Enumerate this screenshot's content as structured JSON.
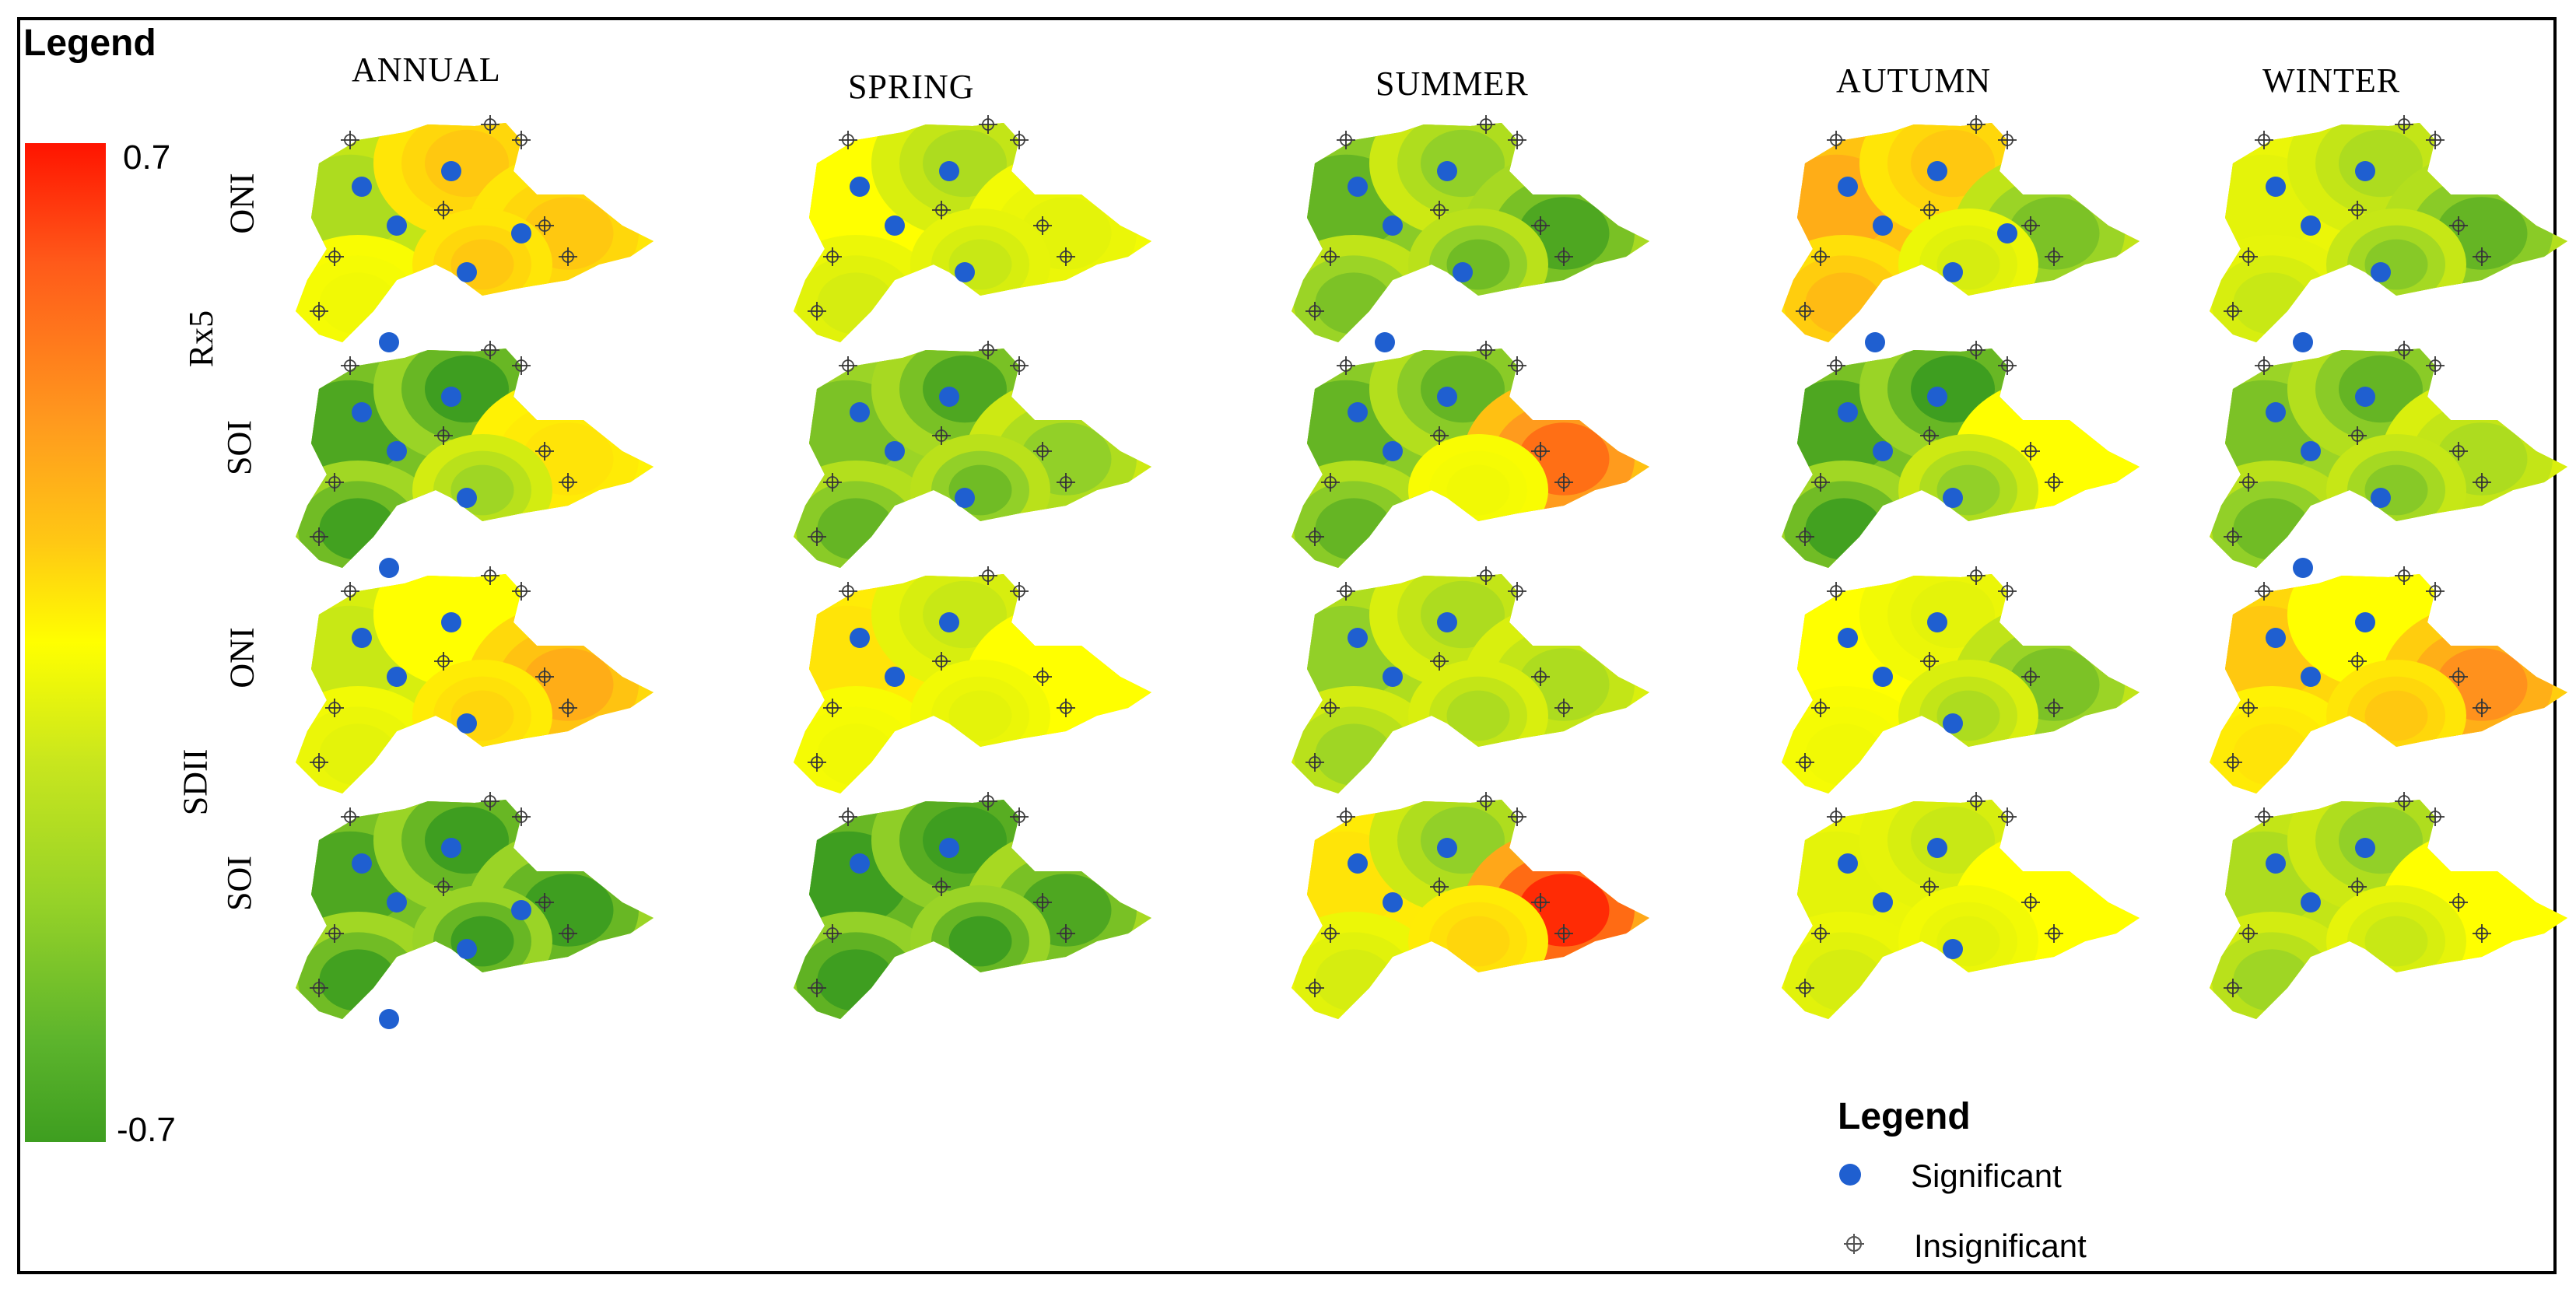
{
  "legend_left": {
    "title": "Legend",
    "max_label": "0.7",
    "min_label": "-0.7"
  },
  "variables": [
    "Rx5",
    "SDII"
  ],
  "row_indices": [
    "ONI",
    "SOI",
    "ONI",
    "SOI"
  ],
  "seasons": [
    "ANNUAL",
    "SPRING",
    "SUMMER",
    "AUTUMN",
    "WINTER"
  ],
  "legend_bottom": {
    "title": "Legend",
    "significant": "Significant",
    "insignificant": "Insignificant"
  },
  "colors": {
    "high": "#ff1400",
    "mid": "#ffff00",
    "low": "#3e9e20",
    "significant": "#1f5fd0"
  },
  "maps": [
    {
      "row": 0,
      "col": 0,
      "hot": [
        0.35,
        0.6,
        0.6
      ],
      "sig": 6
    },
    {
      "row": 0,
      "col": 1,
      "hot": [
        0.5,
        0.35,
        0.45
      ],
      "sig": 4
    },
    {
      "row": 0,
      "col": 2,
      "hot": [
        0.2,
        0.3,
        0.15
      ],
      "sig": 5
    },
    {
      "row": 0,
      "col": 3,
      "hot": [
        0.65,
        0.6,
        0.25
      ],
      "sig": 6
    },
    {
      "row": 0,
      "col": 4,
      "hot": [
        0.45,
        0.35,
        0.2
      ],
      "sig": 5
    },
    {
      "row": 1,
      "col": 0,
      "hot": [
        0.15,
        0.1,
        0.55
      ],
      "sig": 5
    },
    {
      "row": 1,
      "col": 1,
      "hot": [
        0.25,
        0.15,
        0.3
      ],
      "sig": 4
    },
    {
      "row": 1,
      "col": 2,
      "hot": [
        0.2,
        0.2,
        0.75
      ],
      "sig": 3
    },
    {
      "row": 1,
      "col": 3,
      "hot": [
        0.15,
        0.1,
        0.5
      ],
      "sig": 4
    },
    {
      "row": 1,
      "col": 4,
      "hot": [
        0.25,
        0.2,
        0.35
      ],
      "sig": 5
    },
    {
      "row": 2,
      "col": 0,
      "hot": [
        0.4,
        0.5,
        0.65
      ],
      "sig": 4
    },
    {
      "row": 2,
      "col": 1,
      "hot": [
        0.55,
        0.4,
        0.5
      ],
      "sig": 3
    },
    {
      "row": 2,
      "col": 2,
      "hot": [
        0.3,
        0.35,
        0.35
      ],
      "sig": 3
    },
    {
      "row": 2,
      "col": 3,
      "hot": [
        0.5,
        0.45,
        0.25
      ],
      "sig": 4
    },
    {
      "row": 2,
      "col": 4,
      "hot": [
        0.6,
        0.5,
        0.7
      ],
      "sig": 3
    },
    {
      "row": 3,
      "col": 0,
      "hot": [
        0.15,
        0.1,
        0.1
      ],
      "sig": 6
    },
    {
      "row": 3,
      "col": 1,
      "hot": [
        0.1,
        0.05,
        0.15
      ],
      "sig": 2
    },
    {
      "row": 3,
      "col": 2,
      "hot": [
        0.55,
        0.3,
        0.85
      ],
      "sig": 3
    },
    {
      "row": 3,
      "col": 3,
      "hot": [
        0.45,
        0.4,
        0.5
      ],
      "sig": 4
    },
    {
      "row": 3,
      "col": 4,
      "hot": [
        0.35,
        0.3,
        0.5
      ],
      "sig": 3
    }
  ]
}
